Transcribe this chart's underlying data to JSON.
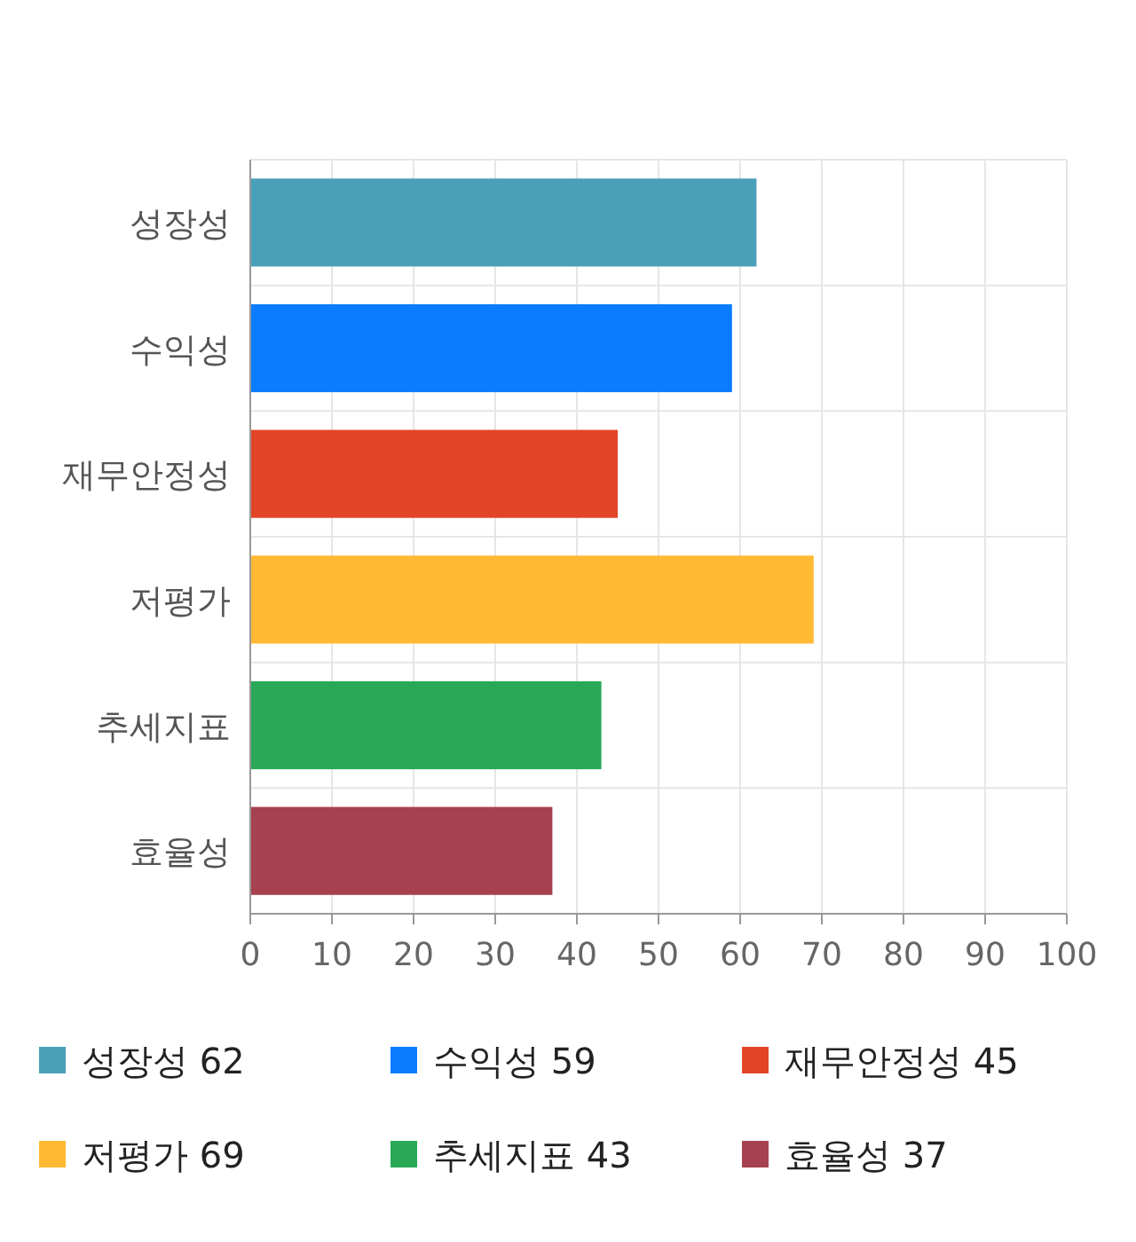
{
  "chart_data": {
    "type": "bar",
    "orientation": "horizontal",
    "categories": [
      "성장성",
      "수익성",
      "재무안정성",
      "저평가",
      "추세지표",
      "효율성"
    ],
    "series": [
      {
        "name": "성장성 62",
        "color": "#4aa0b8",
        "values": [
          62,
          null,
          null,
          null,
          null,
          null
        ]
      },
      {
        "name": "수익성 59",
        "color": "#0a7cff",
        "values": [
          null,
          59,
          null,
          null,
          null,
          null
        ]
      },
      {
        "name": "재무안정성 45",
        "color": "#e24426",
        "values": [
          null,
          null,
          45,
          null,
          null,
          null
        ]
      },
      {
        "name": "저평가 69",
        "color": "#ffb933",
        "values": [
          null,
          null,
          null,
          69,
          null,
          null
        ]
      },
      {
        "name": "추세지표 43",
        "color": "#29a857",
        "values": [
          null,
          null,
          null,
          null,
          43,
          null
        ]
      },
      {
        "name": "효율성 37",
        "color": "#a6414f",
        "values": [
          null,
          null,
          null,
          null,
          null,
          37
        ]
      }
    ],
    "xlim": [
      0,
      100
    ],
    "xticks": [
      0,
      10,
      20,
      30,
      40,
      50,
      60,
      70,
      80,
      90,
      100
    ],
    "grid": true,
    "legend": "bottom"
  }
}
